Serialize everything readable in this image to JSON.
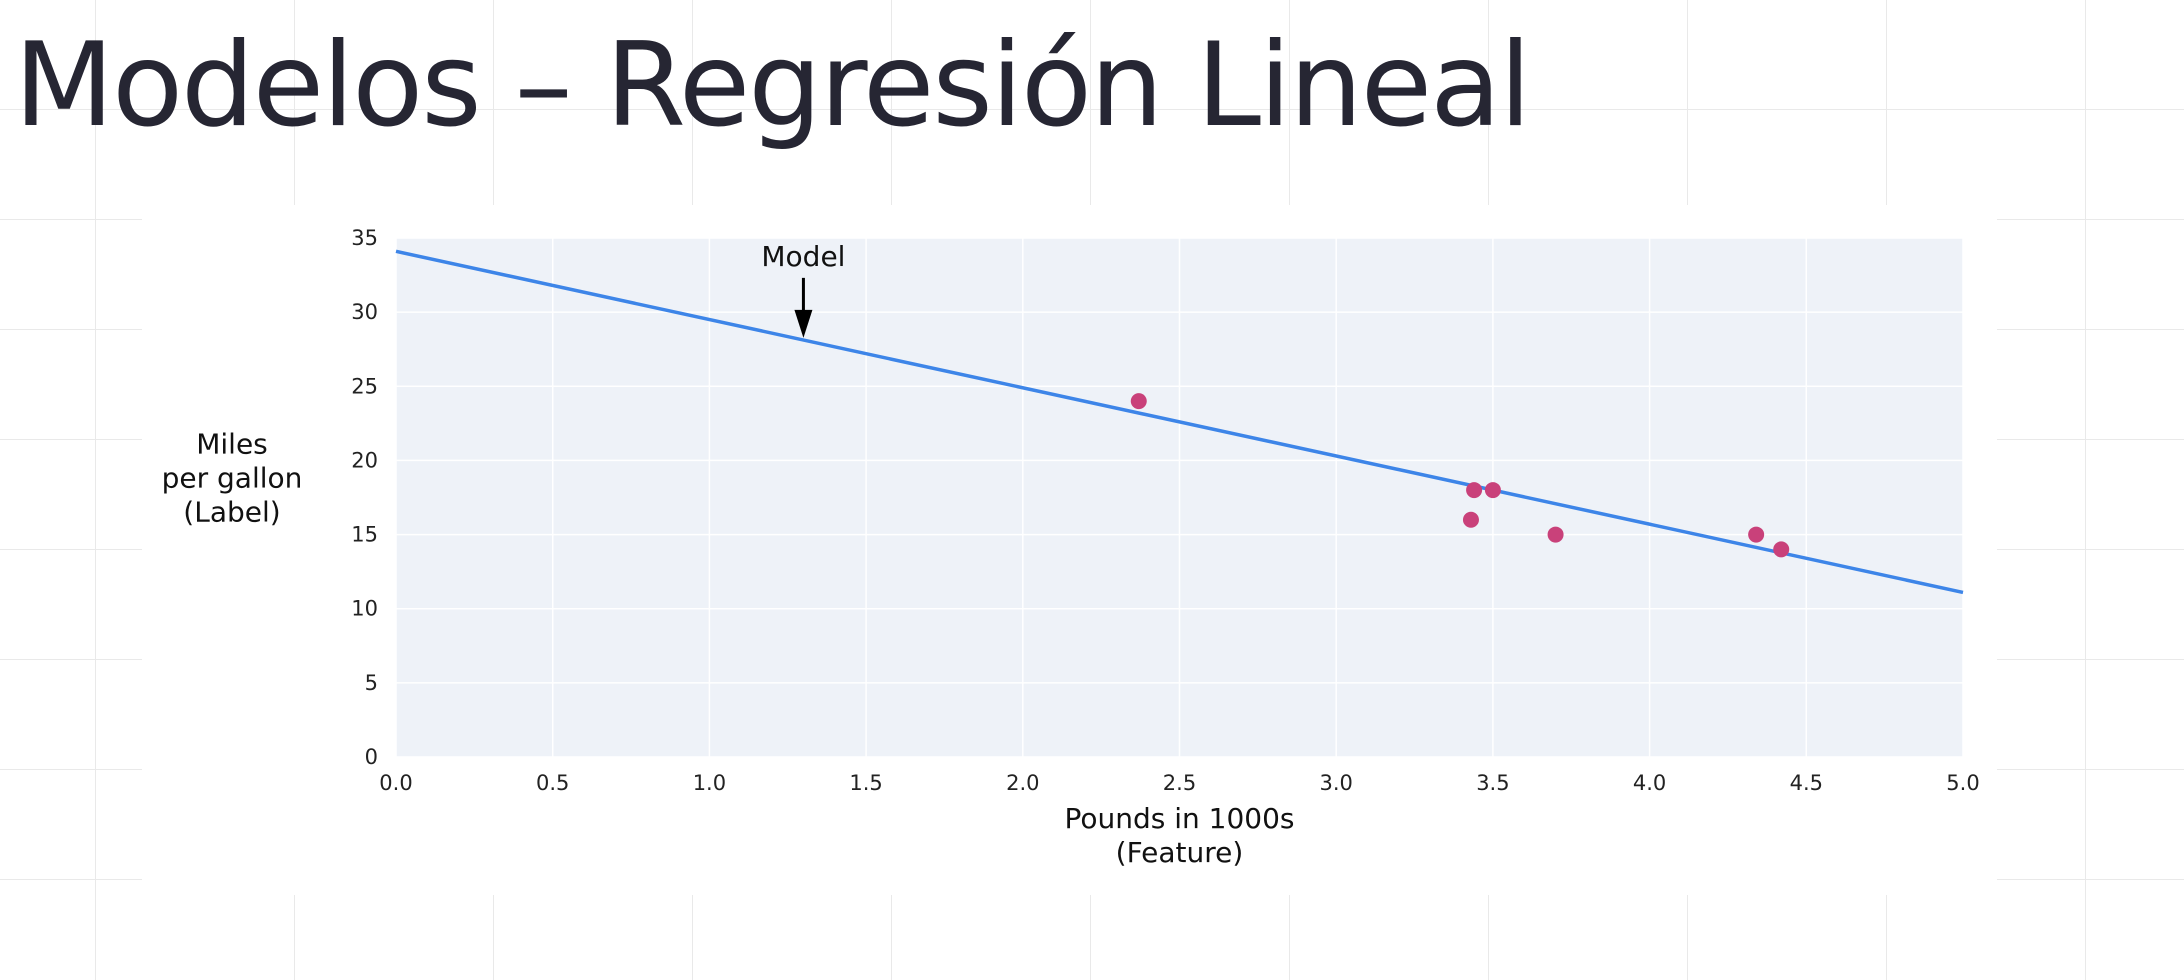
{
  "slide": {
    "title": "Modelos – Regresión Lineal"
  },
  "chart_data": {
    "type": "scatter",
    "xlabel": [
      "Pounds in 1000s",
      "(Feature)"
    ],
    "ylabel": [
      "Miles",
      "per gallon",
      "(Label)"
    ],
    "xlim": [
      0,
      5
    ],
    "ylim": [
      0,
      35
    ],
    "xticks": [
      "0.0",
      "0.5",
      "1.0",
      "1.5",
      "2.0",
      "2.5",
      "3.0",
      "3.5",
      "4.0",
      "4.5",
      "5.0"
    ],
    "yticks": [
      "0",
      "5",
      "10",
      "15",
      "20",
      "25",
      "30",
      "35"
    ],
    "grid": true,
    "points": [
      {
        "x": 2.37,
        "y": 24
      },
      {
        "x": 3.43,
        "y": 16
      },
      {
        "x": 3.44,
        "y": 18
      },
      {
        "x": 3.5,
        "y": 18
      },
      {
        "x": 3.7,
        "y": 15
      },
      {
        "x": 4.34,
        "y": 15
      },
      {
        "x": 4.42,
        "y": 14
      }
    ],
    "model_line": {
      "x": [
        0,
        5
      ],
      "y": [
        34.1,
        11.1
      ]
    },
    "annotation": {
      "text": "Model",
      "x": 1.3,
      "y": 28.4
    },
    "colors": {
      "points": "#c9417a",
      "line": "#3d85e8",
      "plot_bg": "#eef2f8",
      "grid": "#ffffff"
    }
  }
}
